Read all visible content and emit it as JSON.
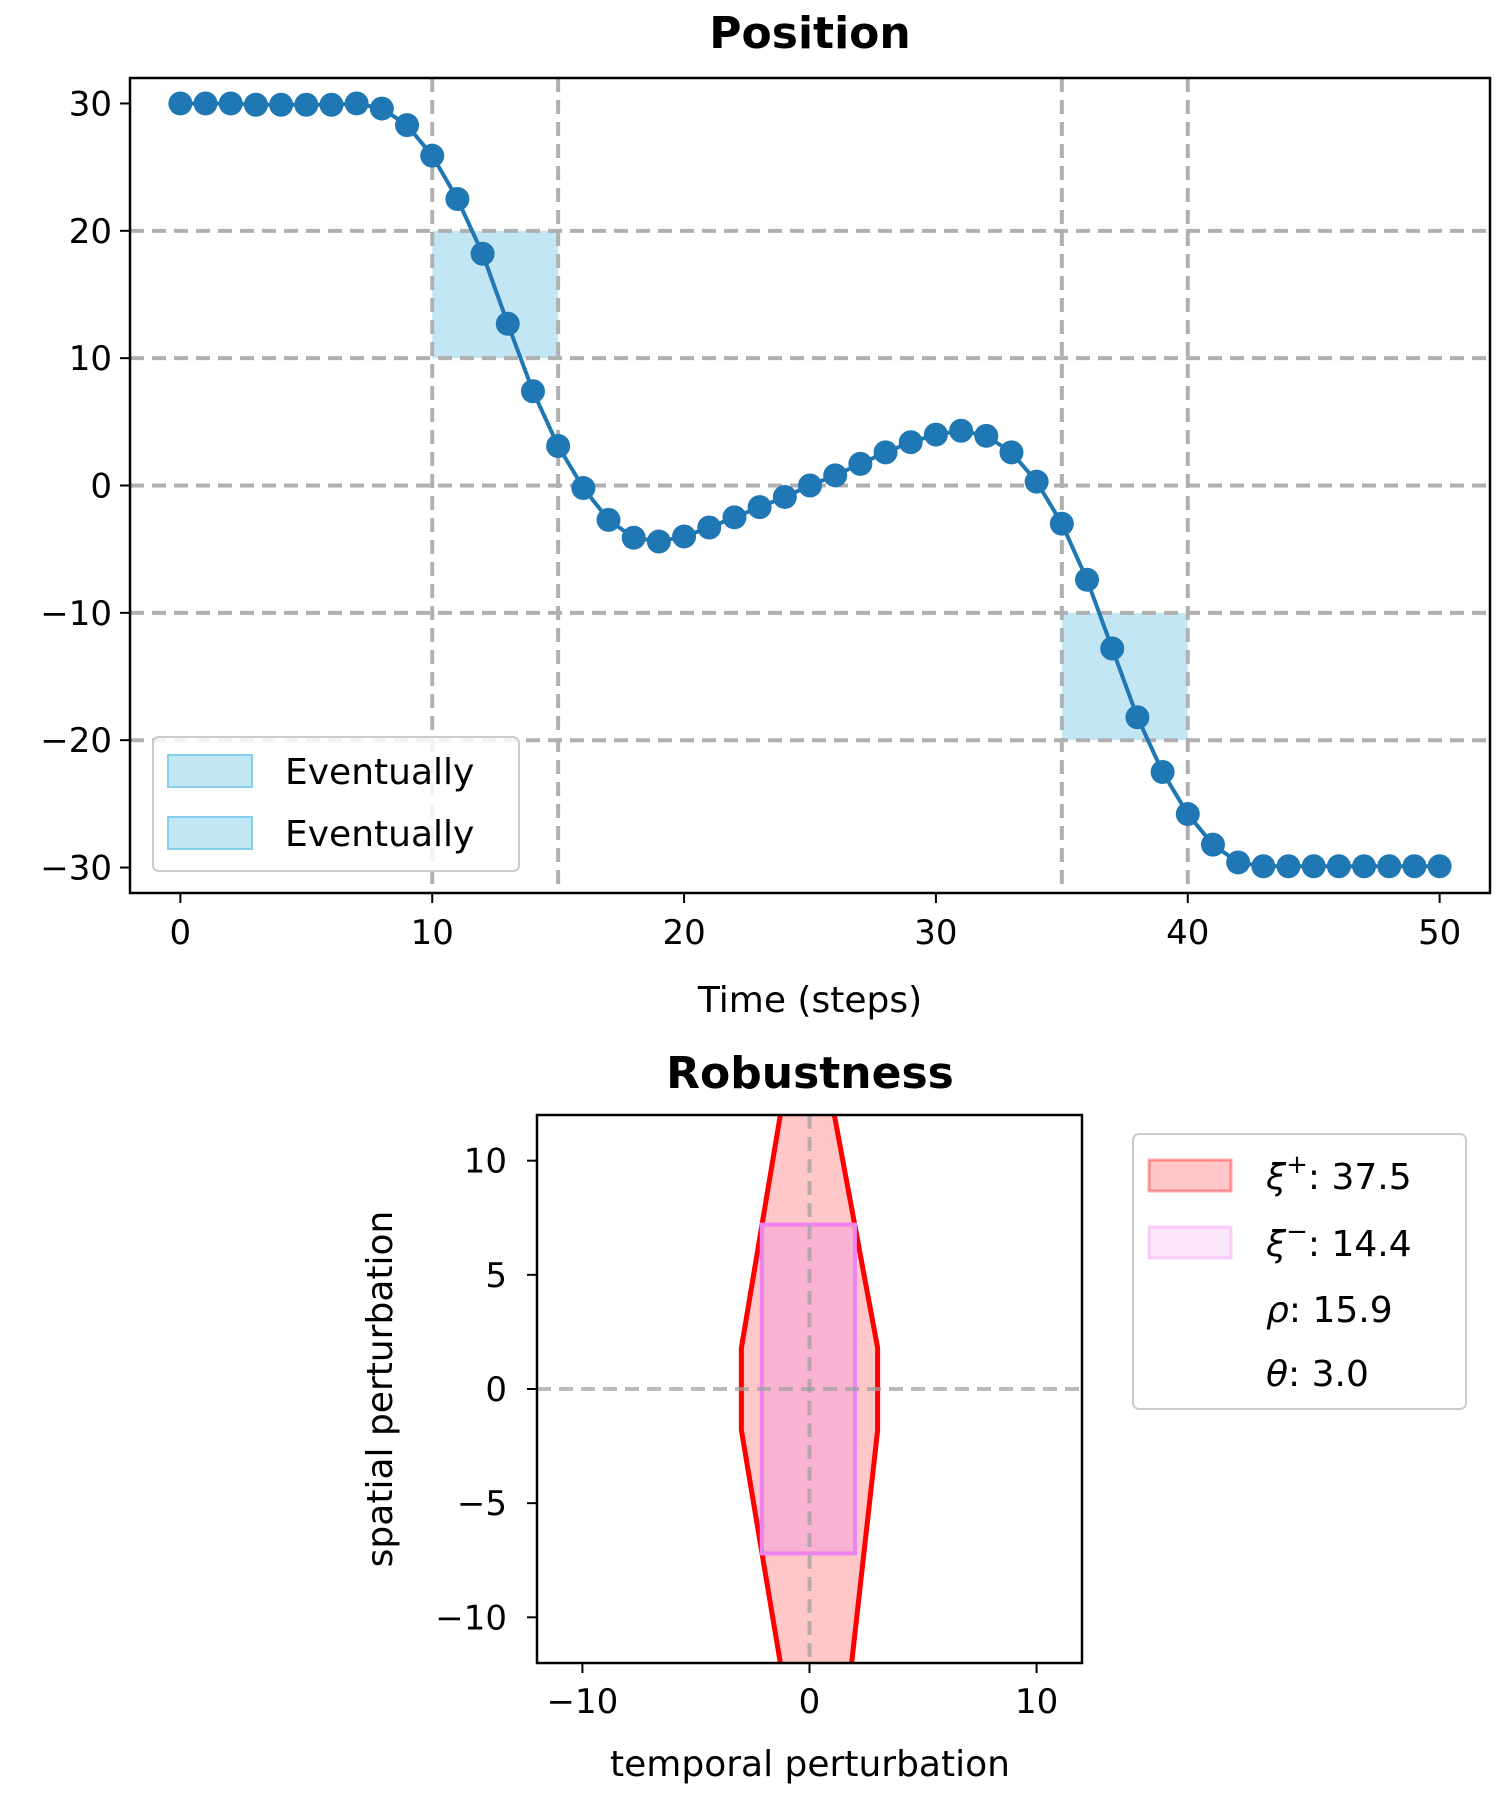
{
  "chart_data": [
    {
      "type": "line",
      "title": "Position",
      "xlabel": "Time (steps)",
      "ylabel": "",
      "xlim": [
        -2,
        52
      ],
      "ylim": [
        -32,
        32
      ],
      "xticks": [
        0,
        10,
        20,
        30,
        40,
        50
      ],
      "yticks": [
        30,
        20,
        10,
        0,
        -10,
        -20,
        -30
      ],
      "xtick_labels": [
        "0",
        "10",
        "20",
        "30",
        "40",
        "50"
      ],
      "ytick_labels": [
        "30",
        "20",
        "10",
        "0",
        "−10",
        "−20",
        "−30"
      ],
      "grid": "dashed",
      "grid_x": [
        10,
        15,
        35,
        40
      ],
      "grid_y": [
        20,
        10,
        0,
        -10,
        -20
      ],
      "legend_position": "lower-left",
      "series": [
        {
          "color": "#1f77b4",
          "marker": "circle",
          "x": [
            0,
            1,
            2,
            3,
            4,
            5,
            6,
            7,
            8,
            9,
            10,
            11,
            12,
            13,
            14,
            15,
            16,
            17,
            18,
            19,
            20,
            21,
            22,
            23,
            24,
            25,
            26,
            27,
            28,
            29,
            30,
            31,
            32,
            33,
            34,
            35,
            36,
            37,
            38,
            39,
            40,
            41,
            42,
            43,
            44,
            45,
            46,
            47,
            48,
            49,
            50
          ],
          "values": [
            30,
            30,
            30,
            29.9,
            29.9,
            29.9,
            29.9,
            30,
            29.6,
            28.3,
            25.9,
            22.5,
            18.2,
            12.7,
            7.4,
            3.1,
            -0.2,
            -2.7,
            -4.1,
            -4.4,
            -4.0,
            -3.3,
            -2.5,
            -1.7,
            -0.9,
            0.0,
            0.8,
            1.7,
            2.6,
            3.4,
            4.0,
            4.3,
            3.9,
            2.6,
            0.3,
            -3.0,
            -7.4,
            -12.8,
            -18.2,
            -22.5,
            -25.8,
            -28.2,
            -29.6,
            -29.9,
            -29.9,
            -29.9,
            -29.9,
            -29.9,
            -29.9,
            -29.9,
            -29.9
          ]
        }
      ],
      "regions": [
        {
          "label": "Eventually",
          "x": [
            10,
            15
          ],
          "y": [
            10,
            20
          ],
          "color": "#87ceeb"
        },
        {
          "label": "Eventually",
          "x": [
            35,
            40
          ],
          "y": [
            -20,
            -10
          ],
          "color": "#87ceeb"
        }
      ]
    },
    {
      "type": "area",
      "title": "Robustness",
      "xlabel": "temporal perturbation",
      "ylabel": "spatial perturbation",
      "xlim": [
        -12,
        12
      ],
      "ylim": [
        -12,
        12
      ],
      "xticks": [
        -10,
        0,
        10
      ],
      "yticks": [
        10,
        5,
        0,
        -5,
        -10
      ],
      "xtick_labels": [
        "−10",
        "0",
        "10"
      ],
      "ytick_labels": [
        "10",
        "5",
        "0",
        "−5",
        "−10"
      ],
      "grid": "dashed",
      "grid_x": [
        0
      ],
      "grid_y": [
        0
      ],
      "legend_position": "outside-right",
      "outer_region": {
        "name": "ξ⁺",
        "value": "37.5",
        "color": "#ff0000",
        "points": [
          [
            -1.2,
            12.5
          ],
          [
            1.0,
            12.5
          ],
          [
            3.0,
            1.8
          ],
          [
            3.0,
            -1.8
          ],
          [
            1.8,
            -12.5
          ],
          [
            -1.2,
            -12.5
          ],
          [
            -3.0,
            -1.8
          ],
          [
            -3.0,
            1.8
          ]
        ]
      },
      "inner_region": {
        "name": "ξ⁻",
        "value": "14.4",
        "color": "#ee82ee",
        "x": [
          -2.1,
          2.0
        ],
        "y": [
          -7.2,
          7.2
        ]
      },
      "legend": [
        {
          "symbol": "ξ",
          "sup": "+",
          "value": "37.5"
        },
        {
          "symbol": "ξ",
          "sup": "−",
          "value": "14.4"
        },
        {
          "symbol": "ρ",
          "value": "15.9"
        },
        {
          "symbol": "θ",
          "value": "3.0"
        }
      ]
    }
  ]
}
